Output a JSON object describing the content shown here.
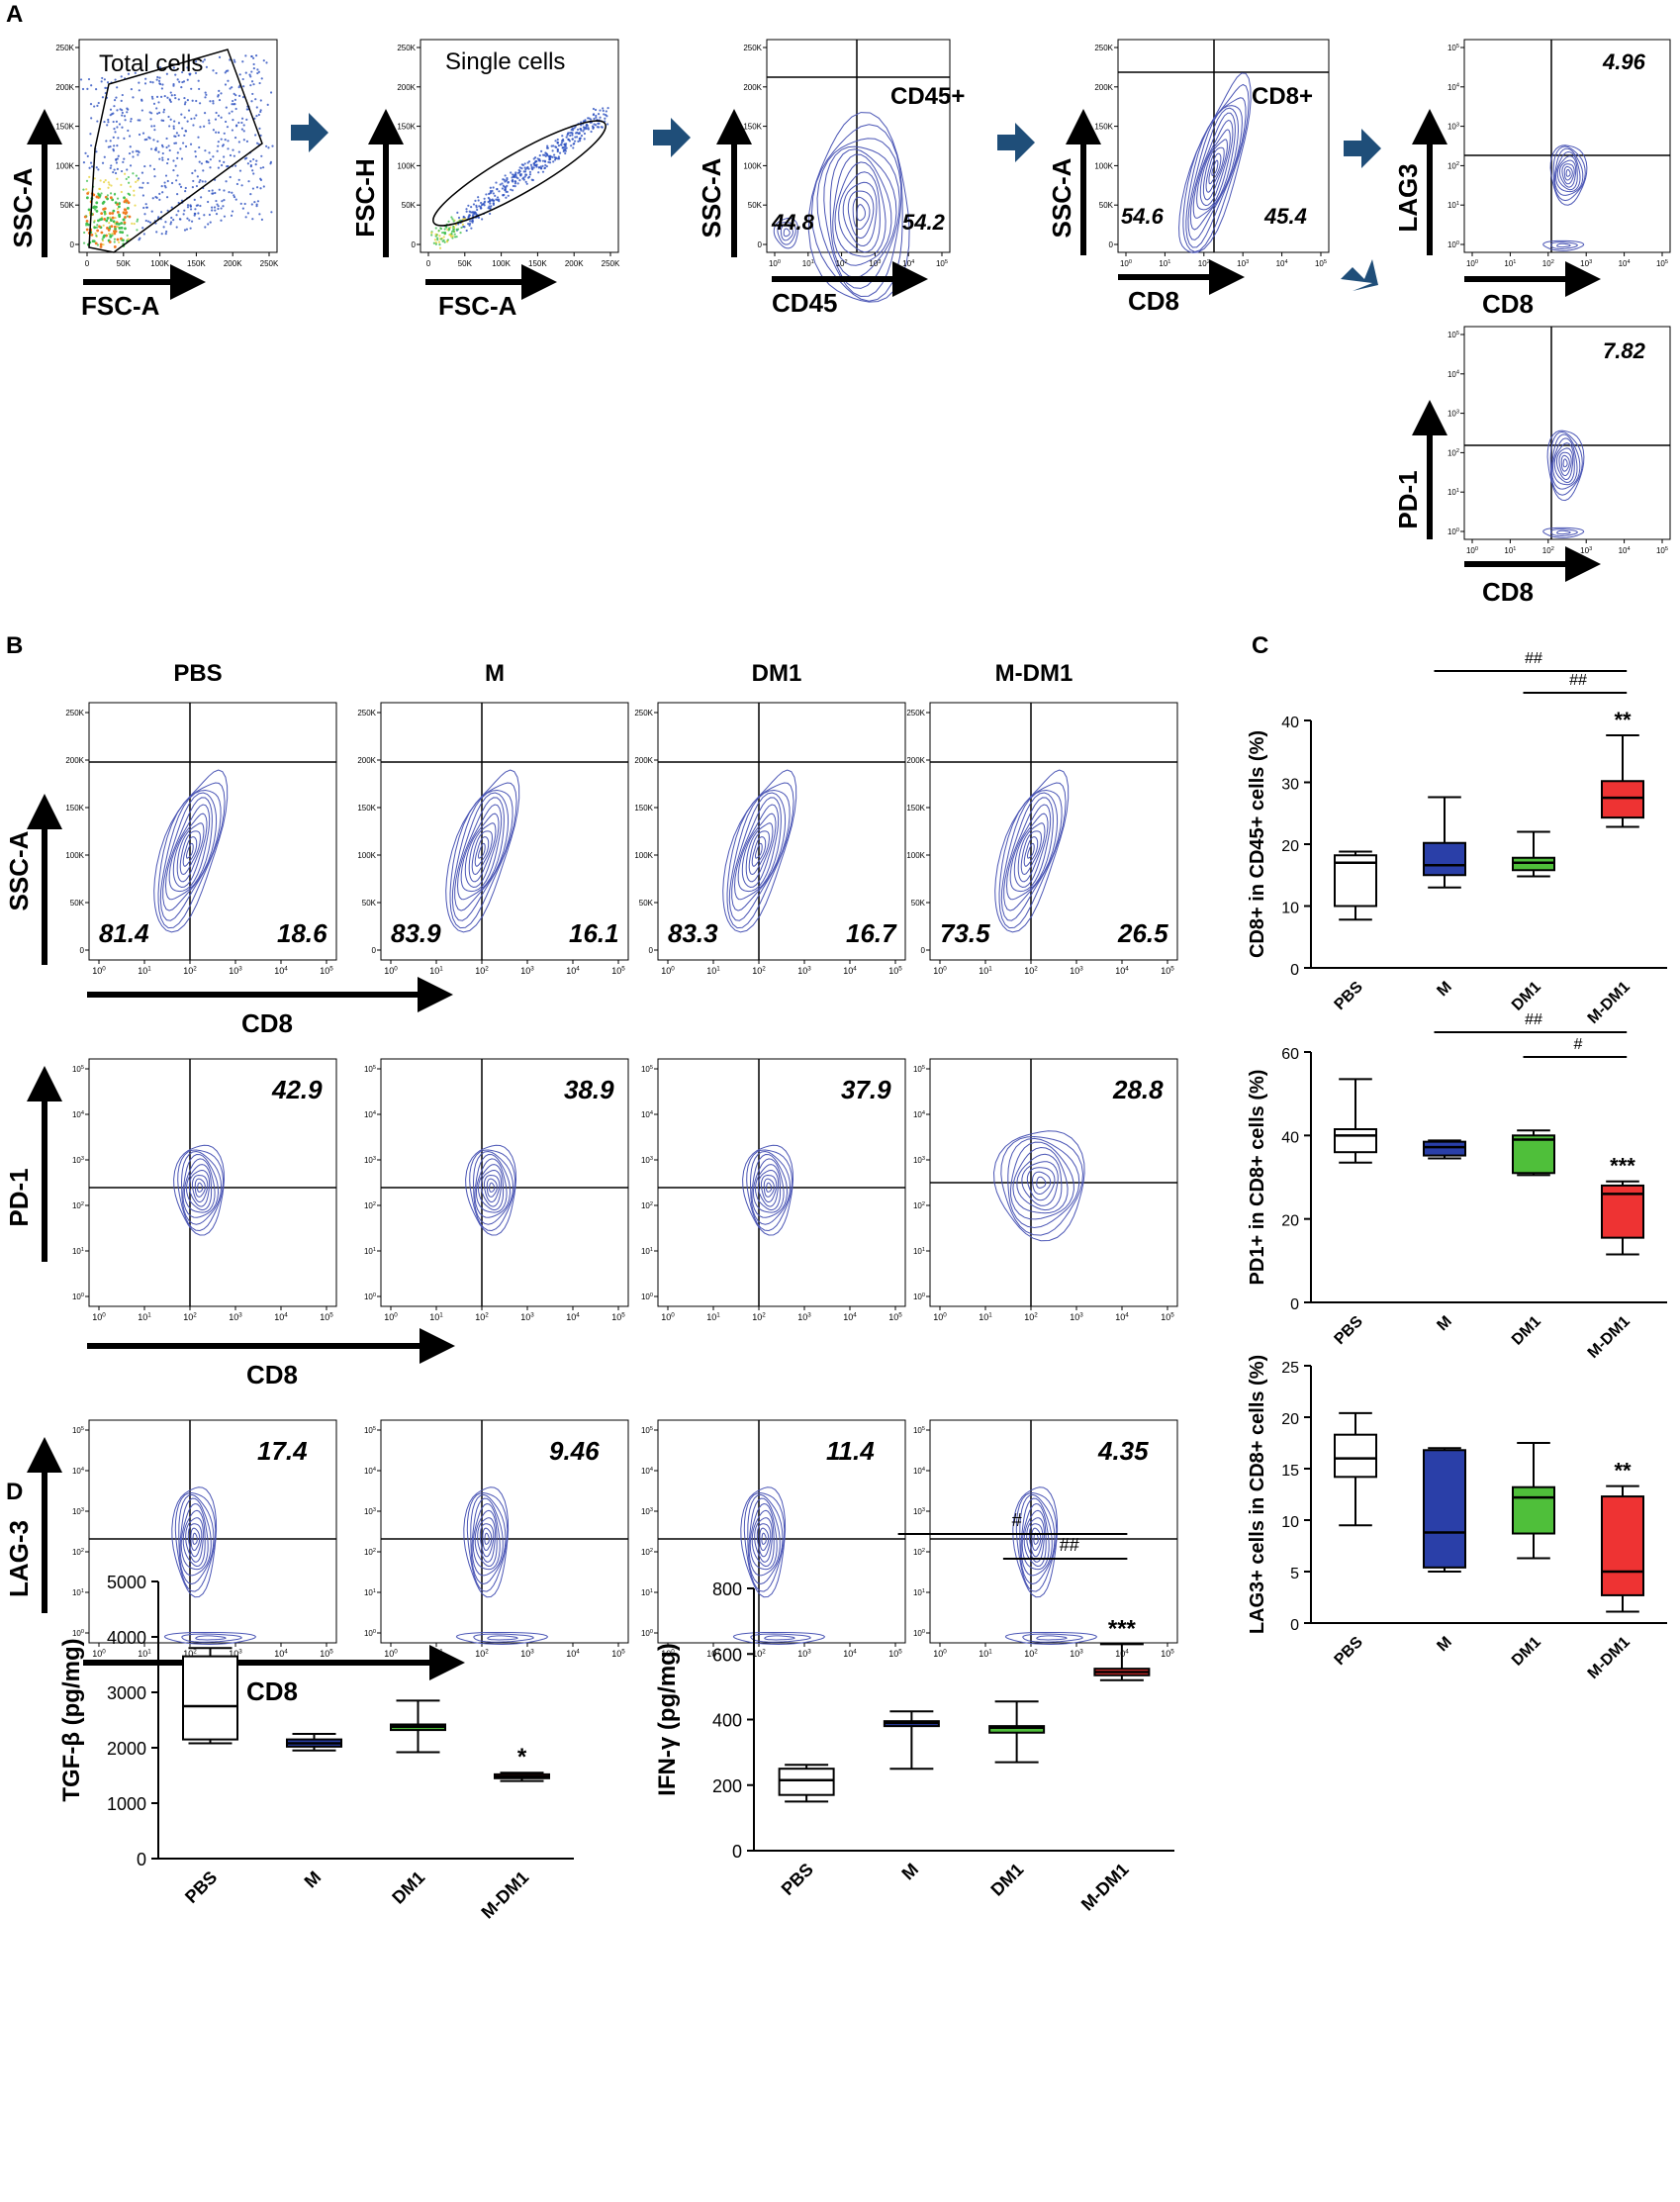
{
  "colors": {
    "contour": "#4a55b5",
    "axis": "#000000",
    "arrow": "#1f4e79",
    "pbs": "#ffffff",
    "m": "#2a3fa8",
    "dm1": "#4fbf3a",
    "mdm1": "#ee3333"
  },
  "panelA": {
    "letter": "A",
    "total": {
      "title": "Total cells",
      "ylab": "SSC-A",
      "xlab": "FSC-A",
      "xticks": [
        "0",
        "50K",
        "100K",
        "150K",
        "200K",
        "250K"
      ],
      "yticks": [
        "0",
        "50K",
        "100K",
        "150K",
        "200K",
        "250K"
      ]
    },
    "single": {
      "title": "Single cells",
      "ylab": "FSC-H",
      "xlab": "FSC-A",
      "xticks": [
        "0",
        "50K",
        "100K",
        "150K",
        "200K",
        "250K"
      ],
      "yticks": [
        "0",
        "50K",
        "100K",
        "150K",
        "200K",
        "250K"
      ]
    },
    "cd45": {
      "ylab": "SSC-A",
      "xlab": "CD45",
      "gate": "CD45+",
      "left": "44.8",
      "right": "54.2",
      "xticks": [
        "10^0",
        "10^1",
        "10^2",
        "10^3",
        "10^4",
        "10^5"
      ],
      "yticks": [
        "0",
        "50K",
        "100K",
        "150K",
        "200K",
        "250K"
      ]
    },
    "cd8": {
      "ylab": "SSC-A",
      "xlab": "CD8",
      "gate": "CD8+",
      "left": "54.6",
      "right": "45.4",
      "xticks": [
        "10^0",
        "10^1",
        "10^2",
        "10^3",
        "10^4",
        "10^5"
      ],
      "yticks": [
        "0",
        "50K",
        "100K",
        "150K",
        "200K",
        "250K"
      ]
    },
    "lag3": {
      "ylab": "LAG3",
      "xlab": "CD8",
      "value": "4.96",
      "xticks": [
        "10^0",
        "10^1",
        "10^2",
        "10^3",
        "10^4",
        "10^5"
      ],
      "yticks": [
        "10^0",
        "10^1",
        "10^2",
        "10^3",
        "10^4",
        "10^5"
      ]
    },
    "pd1": {
      "ylab": "PD-1",
      "xlab": "CD8",
      "value": "7.82",
      "xticks": [
        "10^0",
        "10^1",
        "10^2",
        "10^3",
        "10^4",
        "10^5"
      ],
      "yticks": [
        "10^0",
        "10^1",
        "10^2",
        "10^3",
        "10^4",
        "10^5"
      ]
    }
  },
  "panelB": {
    "letter": "B",
    "groups": [
      "PBS",
      "M",
      "DM1",
      "M-DM1"
    ],
    "row1": {
      "ylab": "SSC-A",
      "xlab": "CD8",
      "left": [
        "81.4",
        "83.9",
        "83.3",
        "73.5"
      ],
      "right": [
        "18.6",
        "16.1",
        "16.7",
        "26.5"
      ],
      "yticks": [
        "0",
        "50K",
        "100K",
        "150K",
        "200K",
        "250K"
      ]
    },
    "row2": {
      "ylab": "PD-1",
      "xlab": "CD8",
      "values": [
        "42.9",
        "38.9",
        "37.9",
        "28.8"
      ]
    },
    "row3": {
      "ylab": "LAG-3",
      "xlab": "CD8",
      "values": [
        "17.4",
        "9.46",
        "11.4",
        "4.35"
      ]
    },
    "xticks": [
      "10^0",
      "10^1",
      "10^2",
      "10^3",
      "10^4",
      "10^5"
    ],
    "logticks": [
      "10^0",
      "10^1",
      "10^2",
      "10^3",
      "10^4",
      "10^5"
    ]
  },
  "panelC": {
    "letter": "C"
  },
  "panelD": {
    "letter": "D"
  },
  "chart_data": [
    {
      "type": "box",
      "id": "c1",
      "ylabel": "CD8+ in CD45+ cells (%)",
      "categories": [
        "PBS",
        "M",
        "DM1",
        "M-DM1"
      ],
      "ylim": [
        0,
        40
      ],
      "yticks": [
        0,
        10,
        20,
        30,
        40
      ],
      "boxes": [
        {
          "min": 7.8,
          "q1": 10,
          "median": 17,
          "q3": 18.2,
          "max": 18.8
        },
        {
          "min": 13,
          "q1": 15,
          "median": 16.6,
          "q3": 20.2,
          "max": 27.6
        },
        {
          "min": 14.8,
          "q1": 15.8,
          "median": 17,
          "q3": 17.8,
          "max": 22
        },
        {
          "min": 22.8,
          "q1": 24.3,
          "median": 27.5,
          "q3": 30.2,
          "max": 37.6
        }
      ],
      "stars": [
        "",
        "",
        "",
        "**"
      ],
      "brackets": [
        {
          "from": 1,
          "to": 3,
          "label": "##"
        },
        {
          "from": 2,
          "to": 3,
          "label": "##"
        }
      ]
    },
    {
      "type": "box",
      "id": "c2",
      "ylabel": "PD1+ in CD8+ cells (%)",
      "categories": [
        "PBS",
        "M",
        "DM1",
        "M-DM1"
      ],
      "ylim": [
        0,
        60
      ],
      "yticks": [
        0,
        20,
        40,
        60
      ],
      "boxes": [
        {
          "min": 33.5,
          "q1": 36,
          "median": 40,
          "q3": 41.5,
          "max": 53.5
        },
        {
          "min": 34.5,
          "q1": 35.2,
          "median": 37.2,
          "q3": 38.5,
          "max": 38.8
        },
        {
          "min": 30.5,
          "q1": 31,
          "median": 39,
          "q3": 40,
          "max": 41.2
        },
        {
          "min": 11.5,
          "q1": 15.5,
          "median": 26,
          "q3": 28,
          "max": 29
        }
      ],
      "stars": [
        "",
        "",
        "",
        "***"
      ],
      "brackets": [
        {
          "from": 1,
          "to": 3,
          "label": "##"
        },
        {
          "from": 2,
          "to": 3,
          "label": "#"
        }
      ]
    },
    {
      "type": "box",
      "id": "c3",
      "ylabel": "LAG3+ cells in CD8+ cells (%)",
      "categories": [
        "PBS",
        "M",
        "DM1",
        "M-DM1"
      ],
      "ylim": [
        0,
        25
      ],
      "yticks": [
        0,
        5,
        10,
        15,
        20,
        25
      ],
      "boxes": [
        {
          "min": 9.5,
          "q1": 14.2,
          "median": 16,
          "q3": 18.3,
          "max": 20.4
        },
        {
          "min": 5,
          "q1": 5.4,
          "median": 8.8,
          "q3": 16.8,
          "max": 17
        },
        {
          "min": 6.3,
          "q1": 8.7,
          "median": 12.2,
          "q3": 13.2,
          "max": 17.5
        },
        {
          "min": 1.1,
          "q1": 2.7,
          "median": 5,
          "q3": 12.3,
          "max": 13.3
        }
      ],
      "stars": [
        "",
        "",
        "",
        "**"
      ],
      "brackets": []
    },
    {
      "type": "box",
      "id": "d1",
      "ylabel": "TGF-β (pg/mg)",
      "categories": [
        "PBS",
        "M",
        "DM1",
        "M-DM1"
      ],
      "ylim": [
        0,
        5000
      ],
      "yticks": [
        0,
        1000,
        2000,
        3000,
        4000,
        5000
      ],
      "boxes": [
        {
          "min": 2080,
          "q1": 2150,
          "median": 2750,
          "q3": 3650,
          "max": 3800
        },
        {
          "min": 1950,
          "q1": 2020,
          "median": 2080,
          "q3": 2150,
          "max": 2250
        },
        {
          "min": 1920,
          "q1": 2320,
          "median": 2380,
          "q3": 2420,
          "max": 2850
        },
        {
          "min": 1400,
          "q1": 1450,
          "median": 1480,
          "q3": 1520,
          "max": 1550
        }
      ],
      "stars": [
        "",
        "",
        "",
        "*"
      ],
      "brackets": []
    },
    {
      "type": "box",
      "id": "d2",
      "ylabel": "IFN-γ (pg/mg)",
      "categories": [
        "PBS",
        "M",
        "DM1",
        "M-DM1"
      ],
      "ylim": [
        0,
        800
      ],
      "yticks": [
        0,
        200,
        400,
        600,
        800
      ],
      "boxes": [
        {
          "min": 150,
          "q1": 170,
          "median": 215,
          "q3": 250,
          "max": 262
        },
        {
          "min": 250,
          "q1": 380,
          "median": 390,
          "q3": 395,
          "max": 425
        },
        {
          "min": 270,
          "q1": 360,
          "median": 375,
          "q3": 380,
          "max": 455
        },
        {
          "min": 520,
          "q1": 535,
          "median": 545,
          "q3": 555,
          "max": 630
        }
      ],
      "stars": [
        "",
        "",
        "",
        "***"
      ],
      "brackets": [
        {
          "from": 1,
          "to": 3,
          "label": "#"
        },
        {
          "from": 2,
          "to": 3,
          "label": "##"
        }
      ]
    }
  ]
}
